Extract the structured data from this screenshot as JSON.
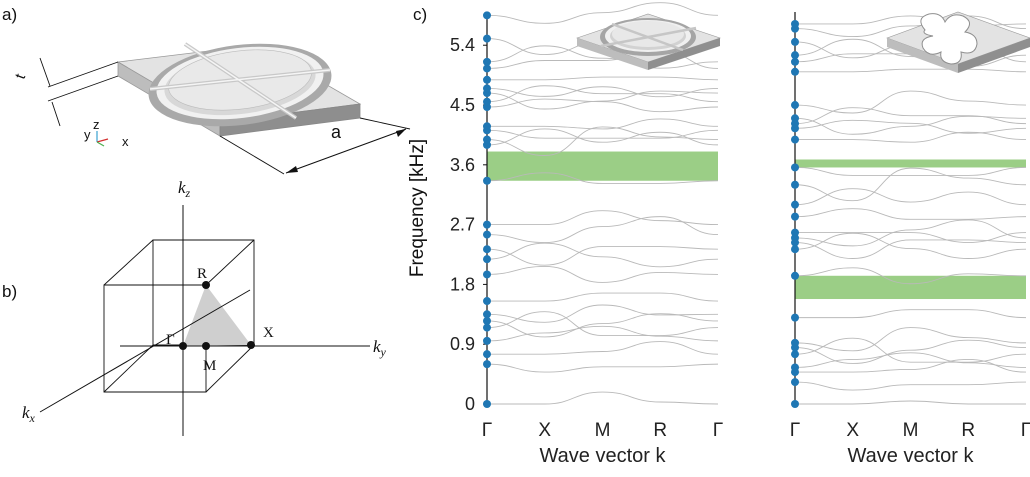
{
  "figure": {
    "label_a": "a)",
    "label_b": "b)",
    "label_c": "c)",
    "dim_t": "t",
    "dim_a": "a",
    "axis_triad": {
      "y": "y",
      "z": "z",
      "x": "x"
    },
    "bz": {
      "kz": "k",
      "kz_sub": "z",
      "ky": "k",
      "ky_sub": "y",
      "kx": "k",
      "kx_sub": "x",
      "points": [
        "Γ",
        "X",
        "M",
        "R"
      ]
    },
    "colors": {
      "marker": "#1f77b4",
      "bandgap": "#9bce86",
      "branch": "#b9b9b9"
    },
    "icons": [
      "ring-resonator-unit-cell-icon",
      "clover-cutout-unit-cell-icon",
      "brillouin-zone-icon",
      "axis-triad-icon"
    ]
  },
  "chart_data": [
    {
      "type": "line",
      "ylabel": "Frequency [kHz]",
      "xlabel": "Wave vector k",
      "categories": [
        "Γ",
        "X",
        "M",
        "R",
        "Γ"
      ],
      "yticks": [
        0,
        0.9,
        1.8,
        2.7,
        3.6,
        4.5,
        5.4
      ],
      "ylim": [
        0,
        5.9
      ],
      "bandgaps": [
        [
          3.36,
          3.8
        ]
      ],
      "gamma_modes": [
        0,
        0.6,
        0.75,
        0.95,
        1.15,
        1.25,
        1.35,
        1.55,
        1.95,
        2.18,
        2.33,
        2.55,
        2.7,
        3.36,
        3.9,
        3.98,
        4.12,
        4.18,
        4.47,
        4.55,
        4.68,
        4.75,
        4.88,
        5.05,
        5.15,
        5.5,
        5.85
      ]
    },
    {
      "type": "line",
      "xlabel": "Wave vector k",
      "categories": [
        "Γ",
        "X",
        "M",
        "R",
        "Γ"
      ],
      "ylim": [
        0,
        5.9
      ],
      "bandgaps": [
        [
          1.58,
          1.93
        ],
        [
          3.56,
          3.68
        ]
      ],
      "gamma_modes": [
        0,
        0.33,
        0.48,
        0.55,
        0.75,
        0.85,
        0.92,
        1.3,
        1.93,
        2.33,
        2.43,
        2.5,
        2.58,
        2.82,
        3.0,
        3.3,
        3.56,
        3.98,
        4.15,
        4.22,
        4.3,
        4.5,
        5.0,
        5.15,
        5.25,
        5.45,
        5.65,
        5.72
      ]
    }
  ]
}
